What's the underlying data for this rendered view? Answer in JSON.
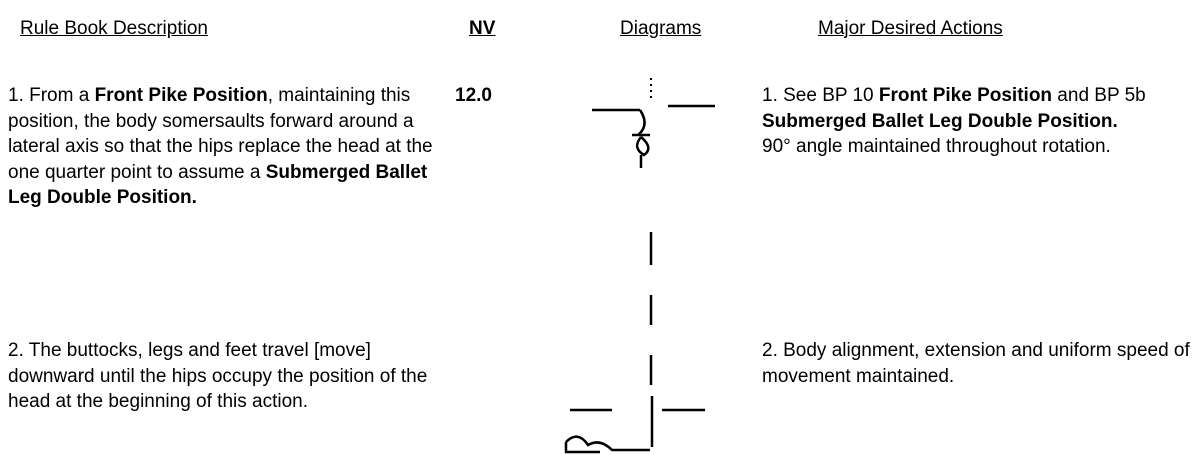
{
  "header": {
    "columns": [
      "Rule Book Description",
      "NV",
      "Diagrams",
      "Major Desired Actions"
    ]
  },
  "rows": [
    {
      "description": [
        {
          "text": "1. From a "
        },
        {
          "text": "Front Pike Position",
          "bold": true
        },
        {
          "text": ", maintaining this position, the body somersaults forward around a lateral axis so that the hips replace the head at the one quarter point to assume a "
        },
        {
          "text": "Submerged Ballet Leg Double Position.",
          "bold": true
        }
      ],
      "nv": "12.0",
      "actions": [
        [
          {
            "text": "1. See BP 10 "
          },
          {
            "text": "Front Pike Position",
            "bold": true
          },
          {
            "text": " and BP 5b "
          },
          {
            "text": "Submerged Ballet Leg Double Position.",
            "bold": true
          }
        ],
        [
          {
            "text": "90° angle maintained throughout rotation."
          }
        ]
      ]
    },
    {
      "description": [
        {
          "text": "2. The buttocks, legs and feet travel [move] downward until the hips occupy the position of the head at the beginning of this action."
        }
      ],
      "actions": [
        [
          {
            "text": "2. Body alignment, extension and uniform speed of movement maintained."
          }
        ]
      ]
    }
  ]
}
